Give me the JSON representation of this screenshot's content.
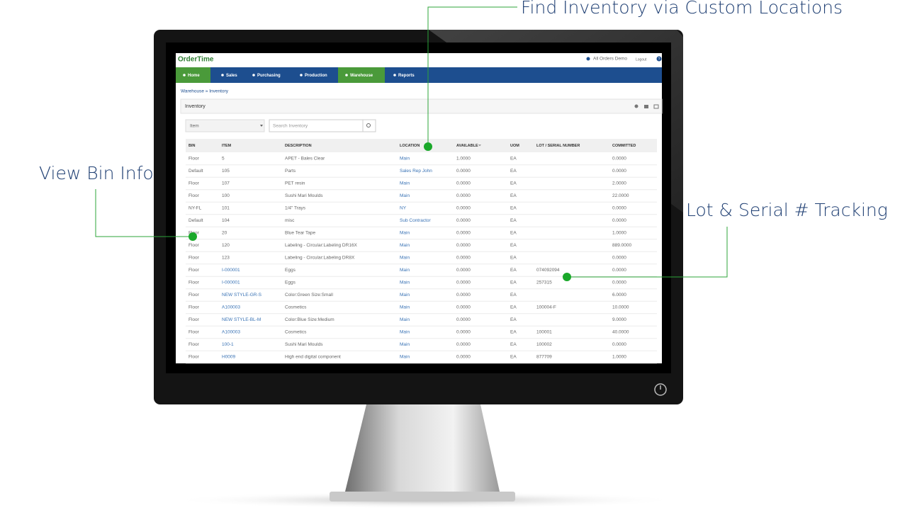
{
  "callouts": [
    "Find Inventory via Custom Locations",
    "View Bin Info",
    "Lot & Serial # Tracking"
  ],
  "app": {
    "logo": "OrderTime",
    "account": "All Orders Demo",
    "logout": "Logout",
    "help": "?"
  },
  "nav": [
    "Home",
    "Sales",
    "Purchasing",
    "Production",
    "Warehouse",
    "Reports"
  ],
  "breadcrumb": "Warehouse » Inventory",
  "panel_title": "Inventory",
  "filter": "Item",
  "search_placeholder": "Search Inventory",
  "table": {
    "columns": [
      "BIN",
      "ITEM",
      "DESCRIPTION",
      "LOCATION",
      "AVAILABLE",
      "UOM",
      "LOT / SERIAL NUMBER",
      "COMMITTED"
    ],
    "rows": [
      [
        "Floor",
        "5",
        "APET - Bales Clear",
        "Main",
        "1.0000",
        "EA",
        null,
        "0.0000"
      ],
      [
        "Default",
        "105",
        "Parts",
        "Sales Rep John",
        "0.0000",
        "EA",
        null,
        "0.0000"
      ],
      [
        "Floor",
        "107",
        "PET resin",
        "Main",
        "0.0000",
        "EA",
        null,
        "2.0000"
      ],
      [
        "Floor",
        "100",
        "Sushi Mari Moulds",
        "Main",
        "0.0000",
        "EA",
        null,
        "22.0000"
      ],
      [
        "NY-FL",
        "101",
        "1/4\" Trays",
        "NY",
        "0.0000",
        "EA",
        null,
        "0.0000"
      ],
      [
        "Default",
        "104",
        "misc",
        "Sub Contractor",
        "0.0000",
        "EA",
        null,
        "0.0000"
      ],
      [
        "Floor",
        "20",
        "Blue Tear Tape",
        "Main",
        "0.0000",
        "EA",
        null,
        "1.0000"
      ],
      [
        "Floor",
        "120",
        "Labeling - Circular:Labeling DR16X",
        "Main",
        "0.0000",
        "EA",
        null,
        "889.0000"
      ],
      [
        "Floor",
        "123",
        "Labeling - Circular:Labeling DR8X",
        "Main",
        "0.0000",
        "EA",
        null,
        "0.0000"
      ],
      [
        "Floor",
        "I-000001",
        "Eggs",
        "Main",
        "0.0000",
        "EA",
        "074092094",
        "0.0000"
      ],
      [
        "Floor",
        "I-000001",
        "Eggs",
        "Main",
        "0.0000",
        "EA",
        "257315",
        "0.0000"
      ],
      [
        "Floor",
        "NEW STYLE-GR-S",
        "Color:Green Size:Small",
        "Main",
        "0.0000",
        "EA",
        null,
        "6.0000"
      ],
      [
        "Floor",
        "A100003",
        "Cosmetics",
        "Main",
        "0.0000",
        "EA",
        "100004-F",
        "10.0000"
      ],
      [
        "Floor",
        "NEW STYLE-BL-M",
        "Color:Blue Size:Medium",
        "Main",
        "0.0000",
        "EA",
        null,
        "9.0000"
      ],
      [
        "Floor",
        "A100003",
        "Cosmetics",
        "Main",
        "0.0000",
        "EA",
        "100001",
        "40.0000"
      ],
      [
        "Floor",
        "100-1",
        "Sushi Mari Moulds",
        "Main",
        "0.0000",
        "EA",
        "100002",
        "0.0000"
      ],
      [
        "Floor",
        "H0009",
        "High end digital component",
        "Main",
        "0.0000",
        "EA",
        "877709",
        "1.0000"
      ]
    ]
  }
}
